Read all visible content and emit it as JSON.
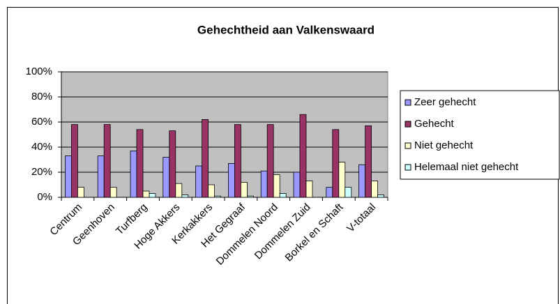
{
  "chart_data": {
    "type": "bar",
    "title": "Gehechtheid aan Valkenswaard",
    "categories": [
      "Centrum",
      "Geenhoven",
      "Turfberg",
      "Hoge Akkers",
      "Kerkakkers",
      "Het Gegraaf",
      "Dommelen Noord",
      "Dommelen Zuid",
      "Borkel en Schaft",
      "V-totaal"
    ],
    "series": [
      {
        "name": "Zeer gehecht",
        "color": "#9999ff",
        "values": [
          33,
          33,
          37,
          32,
          25,
          27,
          21,
          20,
          8,
          26
        ]
      },
      {
        "name": "Gehecht",
        "color": "#993366",
        "values": [
          58,
          58,
          54,
          53,
          62,
          58,
          58,
          66,
          54,
          57
        ]
      },
      {
        "name": "Niet gehecht",
        "color": "#ffffcc",
        "values": [
          8,
          8,
          5,
          11,
          10,
          12,
          18,
          13,
          28,
          13
        ]
      },
      {
        "name": "Helemaal niet gehecht",
        "color": "#ccffff",
        "values": [
          0,
          0,
          3,
          2,
          1,
          1,
          3,
          0,
          8,
          2
        ]
      }
    ],
    "ylim": [
      0,
      100
    ],
    "yticks": [
      {
        "value": 0,
        "label": "0%"
      },
      {
        "value": 20,
        "label": "20%"
      },
      {
        "value": 40,
        "label": "40%"
      },
      {
        "value": 60,
        "label": "60%"
      },
      {
        "value": 80,
        "label": "80%"
      },
      {
        "value": 100,
        "label": "100%"
      }
    ],
    "grid": true,
    "legend": "right",
    "plot_background": "#c0c0c0"
  }
}
